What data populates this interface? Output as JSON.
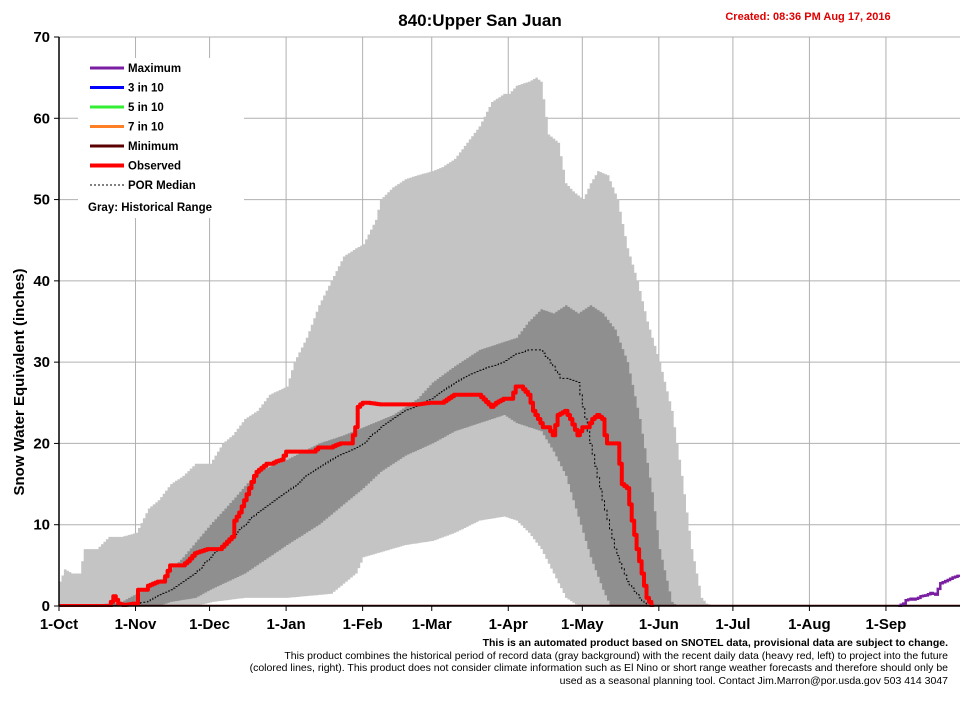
{
  "header": {
    "title": "840:Upper San Juan",
    "created": "Created: 08:36 PM Aug 17, 2016"
  },
  "footnote": {
    "line1": "This is an automated product based on SNOTEL data, provisional data are subject to change.",
    "line2": "This product combines the historical period of record data (gray background) with the recent daily data (heavy red, left) to project into the future (colored lines, right). This product does not consider climate information such as El Nino or short range weather forecasts and therefore should only be used as a seasonal planning tool. Contact Jim.Marron@por.usda.gov 503 414 3047"
  },
  "colors": {
    "maximum": "#7b1fa2",
    "three_in_ten": "#0000ff",
    "five_in_ten": "#33ee33",
    "seven_in_ten": "#ff7f27",
    "minimum": "#5a0000",
    "observed": "#ff0000",
    "median": "#000000",
    "range_outer": "#c4c4c4",
    "range_inner": "#8f8f8f"
  },
  "chart_data": {
    "type": "line",
    "title": "840:Upper San Juan",
    "ylabel": "Snow Water Equivalent (inches)",
    "ylim": [
      0,
      70
    ],
    "yticks": [
      0,
      10,
      20,
      30,
      40,
      50,
      60,
      70
    ],
    "xlabels": [
      "1-Oct",
      "1-Nov",
      "1-Dec",
      "1-Jan",
      "1-Feb",
      "1-Mar",
      "1-Apr",
      "1-May",
      "1-Jun",
      "1-Jul",
      "1-Aug",
      "1-Sep"
    ],
    "xdays": [
      0,
      31,
      61,
      92,
      123,
      151,
      182,
      212,
      243,
      273,
      304,
      335
    ],
    "xmax": 365,
    "legend": [
      {
        "key": "maximum",
        "label": "Maximum"
      },
      {
        "key": "three_in_ten",
        "label": "3 in 10"
      },
      {
        "key": "five_in_ten",
        "label": "5 in 10"
      },
      {
        "key": "seven_in_ten",
        "label": "7 in 10"
      },
      {
        "key": "minimum",
        "label": "Minimum"
      },
      {
        "key": "observed",
        "label": "Observed"
      },
      {
        "key": "median",
        "label": "POR Median"
      }
    ],
    "legend_note": "Gray: Historical Range",
    "historical_max": {
      "x": [
        0,
        2,
        5,
        8,
        10,
        12,
        15,
        20,
        25,
        31,
        36,
        40,
        45,
        50,
        55,
        61,
        66,
        70,
        75,
        80,
        85,
        92,
        95,
        100,
        105,
        110,
        115,
        120,
        123,
        128,
        130,
        135,
        140,
        145,
        151,
        155,
        160,
        165,
        170,
        175,
        180,
        182,
        185,
        190,
        193,
        195,
        198,
        202,
        205,
        208,
        212,
        215,
        218,
        222,
        226,
        230,
        234,
        238,
        243,
        248,
        252,
        256,
        260,
        262,
        265
      ],
      "y": [
        3,
        4.5,
        4,
        4,
        7,
        7,
        7,
        8.5,
        8.5,
        9,
        12,
        13,
        15,
        16,
        17.5,
        17.5,
        20,
        21,
        23,
        24,
        26,
        27,
        30,
        33,
        37,
        40,
        43,
        44,
        44.5,
        47.5,
        50,
        51.5,
        52.5,
        53,
        53.5,
        54,
        55,
        57,
        59,
        62,
        63,
        63,
        64,
        64.5,
        65,
        64.5,
        58,
        57,
        52,
        51,
        50,
        52,
        53.5,
        53,
        50,
        44,
        40,
        35,
        30,
        24,
        16,
        7,
        1,
        0.3,
        0
      ]
    },
    "historical_p80": {
      "x": [
        0,
        10,
        25,
        31,
        40,
        50,
        61,
        70,
        80,
        92,
        105,
        115,
        123,
        135,
        145,
        151,
        160,
        170,
        180,
        185,
        190,
        195,
        200,
        205,
        210,
        215,
        220,
        225,
        230,
        235,
        240,
        243,
        248,
        250
      ],
      "y": [
        0,
        0,
        0.5,
        1.5,
        3,
        6,
        10,
        13,
        16.5,
        18,
        20,
        21,
        22,
        23.5,
        25.5,
        27.5,
        29.5,
        31.5,
        32.5,
        33,
        35,
        36.5,
        36,
        37,
        36,
        37,
        36,
        34,
        30,
        23,
        14,
        7,
        0.5,
        0
      ]
    },
    "historical_p20": {
      "x": [
        0,
        40,
        45,
        55,
        61,
        75,
        92,
        105,
        115,
        123,
        130,
        140,
        151,
        160,
        170,
        175,
        180,
        185,
        190,
        195,
        200,
        205,
        210,
        215,
        220,
        223
      ],
      "y": [
        0,
        0,
        0.5,
        1,
        2,
        4,
        7.5,
        10,
        12.5,
        14.5,
        16.5,
        18.5,
        20,
        21.5,
        22.5,
        23,
        23.5,
        22.5,
        22,
        21.5,
        19,
        16,
        11,
        6,
        2,
        0
      ]
    },
    "historical_min": {
      "x": [
        0,
        55,
        62,
        75,
        92,
        110,
        120,
        123,
        140,
        151,
        160,
        170,
        180,
        185,
        190,
        195,
        200,
        205,
        210
      ],
      "y": [
        0,
        0,
        0.5,
        1,
        1,
        1.5,
        4,
        6,
        7.5,
        8,
        9,
        10.5,
        11,
        10.5,
        9,
        7,
        4,
        1,
        0
      ]
    },
    "por_median": {
      "x": [
        0,
        25,
        35,
        45,
        55,
        61,
        70,
        80,
        92,
        100,
        110,
        120,
        123,
        130,
        140,
        151,
        160,
        170,
        180,
        185,
        190,
        195,
        200,
        203,
        206,
        210,
        215,
        220,
        225,
        230,
        235,
        238,
        240,
        243
      ],
      "y": [
        0,
        0,
        0.5,
        2,
        4,
        6,
        8.5,
        11.5,
        14,
        16,
        18,
        19.5,
        20,
        22,
        24,
        25.5,
        27.5,
        29,
        30,
        31,
        31.5,
        31.5,
        29.5,
        28,
        28,
        27.5,
        20,
        13,
        7,
        3,
        1,
        0,
        0,
        0
      ]
    },
    "observed": {
      "x": [
        0,
        20,
        21,
        22,
        24,
        26,
        28,
        30,
        31,
        32,
        35,
        36,
        40,
        42,
        45,
        47,
        50,
        52,
        55,
        58,
        60,
        62,
        65,
        70,
        71,
        73,
        75,
        77,
        79,
        80,
        82,
        84,
        86,
        88,
        90,
        92,
        93,
        95,
        98,
        100,
        102,
        103,
        105,
        108,
        110,
        112,
        114,
        116,
        118,
        120,
        121,
        122,
        123,
        125,
        130,
        135,
        140,
        145,
        150,
        152,
        155,
        160,
        165,
        170,
        175,
        177,
        180,
        183,
        185,
        187,
        190,
        192,
        194,
        196,
        198,
        200,
        202,
        205,
        207,
        210,
        212,
        214,
        216,
        218,
        220,
        221,
        222,
        224,
        226,
        228,
        230,
        232,
        234,
        236,
        238,
        240
      ],
      "y": [
        0,
        0,
        0.5,
        1.2,
        0.3,
        0.1,
        0.2,
        0.3,
        0.3,
        2,
        2,
        2.5,
        3,
        3,
        5,
        5,
        5,
        5.5,
        6.5,
        6.8,
        7,
        7,
        7,
        8.5,
        10.5,
        11.5,
        13,
        14.5,
        16,
        16.5,
        17,
        17.5,
        17.5,
        17.8,
        18,
        19,
        19,
        19,
        19,
        19,
        19,
        19,
        19.5,
        19.5,
        19.5,
        19.8,
        20,
        20,
        20,
        22,
        24.5,
        24.8,
        25,
        25,
        24.8,
        24.8,
        24.8,
        24.8,
        25,
        25,
        25,
        26,
        26,
        26,
        24.5,
        25,
        25.5,
        25.5,
        27,
        27,
        26,
        24,
        23,
        22,
        22,
        21,
        23.5,
        24,
        23,
        21,
        22,
        22,
        23,
        23.5,
        23,
        21,
        20,
        20,
        20,
        15,
        14.5,
        10.5,
        7,
        4,
        1,
        0
      ]
    },
    "observed_baseline_end": 365,
    "projection_max": {
      "x": [
        340,
        342,
        343,
        345,
        346,
        348,
        349,
        351,
        353,
        355,
        357,
        360,
        362,
        365
      ],
      "y": [
        0,
        0.3,
        0.7,
        0.9,
        0.8,
        1.0,
        1.2,
        1.3,
        1.6,
        1.4,
        2.8,
        3.2,
        3.5,
        3.8
      ]
    }
  }
}
